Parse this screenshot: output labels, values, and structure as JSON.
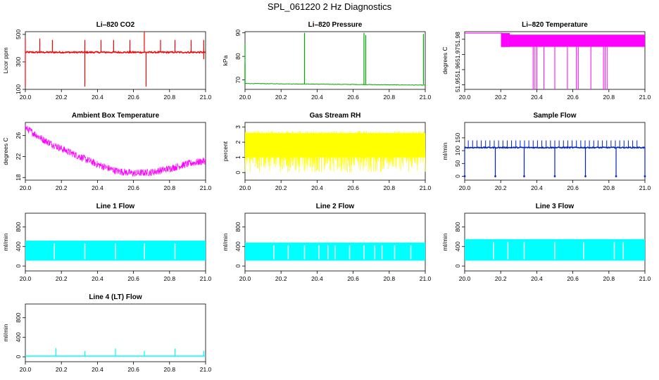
{
  "page": {
    "title": "SPL_061220  2 Hz Diagnostics"
  },
  "chart_data": [
    {
      "id": "co2",
      "type": "line",
      "title": "Li–820 CO2",
      "xlabel": "",
      "ylabel": "Licor ppm",
      "xlim": [
        20.0,
        21.0
      ],
      "ylim": [
        100,
        520
      ],
      "xticks": [
        20.0,
        20.2,
        20.4,
        20.6,
        20.8,
        21.0
      ],
      "xtick_labels": [
        "20.0",
        "20.2",
        "20.4",
        "20.6",
        "20.8",
        "21.0"
      ],
      "yticks": [
        100,
        300,
        500
      ],
      "ytick_labels": [
        "100",
        "300",
        "500"
      ],
      "color": "#ff0000",
      "series": [
        {
          "name": "CO2",
          "baseline": 370,
          "noise": 10,
          "spikes": [
            [
              20.0,
              470
            ],
            [
              20.0,
              120
            ],
            [
              20.08,
              470
            ],
            [
              20.15,
              460
            ],
            [
              20.33,
              460
            ],
            [
              20.33,
              120
            ],
            [
              20.42,
              460
            ],
            [
              20.49,
              460
            ],
            [
              20.58,
              460
            ],
            [
              20.66,
              520
            ],
            [
              20.67,
              120
            ],
            [
              20.75,
              460
            ],
            [
              20.83,
              460
            ],
            [
              20.92,
              460
            ],
            [
              20.99,
              460
            ],
            [
              20.99,
              320
            ]
          ]
        }
      ]
    },
    {
      "id": "pressure",
      "type": "line",
      "title": "Li–820 Pressure",
      "xlabel": "",
      "ylabel": "kPa",
      "xlim": [
        20.0,
        21.0
      ],
      "ylim": [
        66,
        90.5
      ],
      "xticks": [
        20.0,
        20.2,
        20.4,
        20.6,
        20.8,
        21.0
      ],
      "xtick_labels": [
        "20.0",
        "20.2",
        "20.4",
        "20.6",
        "20.8",
        "21.0"
      ],
      "yticks": [
        70,
        80,
        90
      ],
      "ytick_labels": [
        "70",
        "80",
        "90"
      ],
      "color": "#00aa00",
      "series": [
        {
          "name": "Pressure",
          "start": 68.5,
          "end": 67.8,
          "noise": 0.2,
          "spikes": [
            [
              20.0,
              85.5
            ],
            [
              20.0,
              77
            ],
            [
              20.33,
              90
            ],
            [
              20.66,
              90
            ],
            [
              20.67,
              89
            ],
            [
              20.99,
              89.5
            ]
          ]
        }
      ]
    },
    {
      "id": "licor-temp",
      "type": "line",
      "title": "Li–820 Temperature",
      "xlabel": "",
      "ylabel": "degrees C",
      "xlim": [
        20.0,
        21.0
      ],
      "ylim": [
        51.947,
        51.985
      ],
      "xticks": [
        20.0,
        20.2,
        20.4,
        20.6,
        20.8,
        21.0
      ],
      "xtick_labels": [
        "20.0",
        "20.2",
        "20.4",
        "20.6",
        "20.8",
        "21.0"
      ],
      "yticks": [
        51.95,
        51.96,
        51.97,
        51.98
      ],
      "ytick_labels": [
        "51.95",
        "51.96",
        "51.97",
        "51.98"
      ],
      "color": "#ff00ff",
      "series": [
        {
          "name": "Temperature",
          "levels": [
            51.984,
            51.983,
            51.975,
            51.947
          ]
        }
      ]
    },
    {
      "id": "box-temp",
      "type": "line",
      "title": "Ambient Box Temperature",
      "xlabel": "",
      "ylabel": "degrees C",
      "xlim": [
        20.0,
        21.0
      ],
      "ylim": [
        17.5,
        28.5
      ],
      "xticks": [
        20.0,
        20.2,
        20.4,
        20.6,
        20.8,
        21.0
      ],
      "xtick_labels": [
        "20.0",
        "20.2",
        "20.4",
        "20.6",
        "20.8",
        "21.0"
      ],
      "yticks": [
        18,
        22,
        26
      ],
      "ytick_labels": [
        "18",
        "22",
        "26"
      ],
      "color": "#ff00ff",
      "series": [
        {
          "name": "Box Temperature",
          "x": [
            20.0,
            20.1,
            20.2,
            20.3,
            20.4,
            20.5,
            20.6,
            20.7,
            20.8,
            20.9,
            21.0
          ],
          "y": [
            27.5,
            25.2,
            23.5,
            22.0,
            20.5,
            19.3,
            18.8,
            19.0,
            19.7,
            20.6,
            21.2
          ],
          "noise": 0.7
        }
      ]
    },
    {
      "id": "gas-rh",
      "type": "line",
      "title": "Gas Stream RH",
      "xlabel": "",
      "ylabel": "percent",
      "xlim": [
        20.0,
        21.0
      ],
      "ylim": [
        -0.5,
        3.3
      ],
      "xticks": [
        20.0,
        20.2,
        20.4,
        20.6,
        20.8,
        21.0
      ],
      "xtick_labels": [
        "20.0",
        "20.2",
        "20.4",
        "20.6",
        "20.8",
        "21.0"
      ],
      "yticks": [
        0,
        1,
        2,
        3
      ],
      "ytick_labels": [
        "0",
        "1",
        "2",
        "3"
      ],
      "color": "#ffff00",
      "series": [
        {
          "name": "RH",
          "band_top": 2.6,
          "band_low": 0.0,
          "dense_low": 1.0
        }
      ]
    },
    {
      "id": "sample-flow",
      "type": "line",
      "title": "Sample Flow",
      "xlabel": "",
      "ylabel": "ml/min",
      "xlim": [
        20.0,
        21.0
      ],
      "ylim": [
        -15,
        210
      ],
      "xticks": [
        20.0,
        20.2,
        20.4,
        20.6,
        20.8,
        21.0
      ],
      "xtick_labels": [
        "20.0",
        "20.2",
        "20.4",
        "20.6",
        "20.8",
        "21.0"
      ],
      "yticks": [
        0,
        50,
        100,
        150
      ],
      "ytick_labels": [
        "0",
        "50",
        "100",
        "150"
      ],
      "color": "#0022cc",
      "series": [
        {
          "name": "Sample Flow",
          "baseline": 112,
          "noise": 4,
          "spike_top": 140,
          "dips": [
            20.0,
            20.17,
            20.33,
            20.5,
            20.67,
            20.84,
            21.0
          ]
        }
      ]
    },
    {
      "id": "line1",
      "type": "line",
      "title": "Line 1 Flow",
      "xlabel": "",
      "ylabel": "ml/min",
      "xlim": [
        20.0,
        21.0
      ],
      "ylim": [
        -100,
        1080
      ],
      "xticks": [
        20.0,
        20.2,
        20.4,
        20.6,
        20.8,
        21.0
      ],
      "xtick_labels": [
        "20.0",
        "20.2",
        "20.4",
        "20.6",
        "20.8",
        "21.0"
      ],
      "yticks": [
        0,
        400,
        800
      ],
      "ytick_labels": [
        "0",
        "400",
        "800"
      ],
      "color": "#00ffff",
      "series": [
        {
          "name": "Line 1",
          "band_top": 520,
          "band_low": 110,
          "gaps": [
            20.16,
            20.33,
            20.5,
            20.66,
            20.83
          ]
        }
      ]
    },
    {
      "id": "line2",
      "type": "line",
      "title": "Line 2 Flow",
      "xlabel": "",
      "ylabel": "ml/min",
      "xlim": [
        20.0,
        21.0
      ],
      "ylim": [
        -100,
        1080
      ],
      "xticks": [
        20.0,
        20.2,
        20.4,
        20.6,
        20.8,
        21.0
      ],
      "xtick_labels": [
        "20.0",
        "20.2",
        "20.4",
        "20.6",
        "20.8",
        "21.0"
      ],
      "yticks": [
        0,
        400,
        800
      ],
      "ytick_labels": [
        "0",
        "400",
        "800"
      ],
      "color": "#00ffff",
      "series": [
        {
          "name": "Line 2",
          "band_top": 480,
          "band_low": 110,
          "gaps": [
            20.16,
            20.24,
            20.33,
            20.41,
            20.46,
            20.5,
            20.58,
            20.66,
            20.72,
            20.76,
            20.83,
            20.92
          ]
        }
      ]
    },
    {
      "id": "line3",
      "type": "line",
      "title": "Line 3 Flow",
      "xlabel": "",
      "ylabel": "ml/min",
      "xlim": [
        20.0,
        21.0
      ],
      "ylim": [
        -100,
        1080
      ],
      "xticks": [
        20.0,
        20.2,
        20.4,
        20.6,
        20.8,
        21.0
      ],
      "xtick_labels": [
        "20.0",
        "20.2",
        "20.4",
        "20.6",
        "20.8",
        "21.0"
      ],
      "yticks": [
        0,
        400,
        800
      ],
      "ytick_labels": [
        "0",
        "400",
        "800"
      ],
      "color": "#00ffff",
      "series": [
        {
          "name": "Line 3",
          "band_top": 550,
          "band_low": 110,
          "gaps": [
            20.16,
            20.24,
            20.33,
            20.5,
            20.66,
            20.83,
            20.88
          ]
        }
      ]
    },
    {
      "id": "line4",
      "type": "line",
      "title": "Line 4 (LT) Flow",
      "xlabel": "",
      "ylabel": "ml/min",
      "xlim": [
        20.0,
        21.0
      ],
      "ylim": [
        -100,
        1080
      ],
      "xticks": [
        20.0,
        20.2,
        20.4,
        20.6,
        20.8,
        21.0
      ],
      "xtick_labels": [
        "20.0",
        "20.2",
        "20.4",
        "20.6",
        "20.8",
        "21.0"
      ],
      "yticks": [
        0,
        400,
        800
      ],
      "ytick_labels": [
        "0",
        "400",
        "800"
      ],
      "color": "#00ffff",
      "series": [
        {
          "name": "Line 4",
          "baseline": 15,
          "spikes": [
            [
              20.17,
              180
            ],
            [
              20.33,
              120
            ],
            [
              20.5,
              170
            ],
            [
              20.66,
              120
            ],
            [
              20.83,
              170
            ],
            [
              20.99,
              120
            ]
          ]
        }
      ]
    }
  ]
}
